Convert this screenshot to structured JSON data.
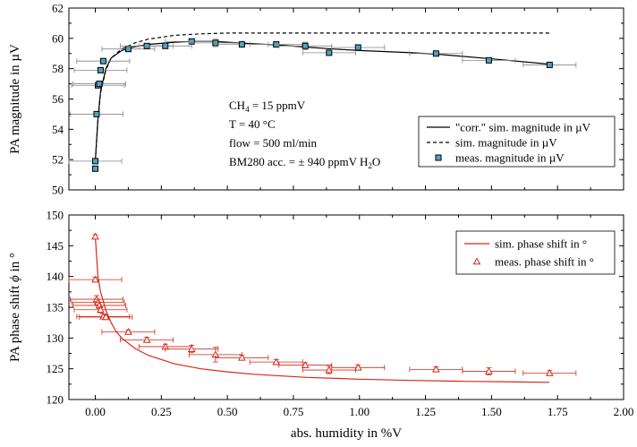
{
  "chart_data": [
    {
      "type": "line",
      "ylabel": "PA magnitude in µV",
      "xlim": [
        -0.1,
        2.0
      ],
      "ylim": [
        50,
        62
      ],
      "xticks": [
        "0.00",
        "0.25",
        "0.50",
        "0.75",
        "1.00",
        "1.25",
        "1.50",
        "1.75",
        "2.00"
      ],
      "yticks": [
        "50",
        "52",
        "54",
        "56",
        "58",
        "60",
        "62"
      ],
      "show_x_tick_labels": false,
      "legend_position": "right-middle",
      "annotation": [
        {
          "pre": "CH",
          "sub": "4",
          "post": " = 15 ppmV"
        },
        {
          "pre": "T = 40 °C",
          "sub": "",
          "post": ""
        },
        {
          "pre": "flow = 500 ml/min",
          "sub": "",
          "post": ""
        },
        {
          "pre": "BM280 acc. = ± 940 ppmV H",
          "sub": "2",
          "post": "O"
        }
      ],
      "series": [
        {
          "name": "\"corr.\" sim. magnitude in µV",
          "style": "solid-line",
          "color": "#000000",
          "x": [
            0.0,
            0.01,
            0.02,
            0.04,
            0.06,
            0.1,
            0.15,
            0.2,
            0.3,
            0.37,
            0.45,
            0.5,
            0.6,
            0.7,
            0.8,
            0.9,
            1.0,
            1.2,
            1.3,
            1.5,
            1.72
          ],
          "y": [
            51.9,
            54.7,
            56.5,
            58.0,
            58.7,
            59.2,
            59.45,
            59.6,
            59.75,
            59.8,
            59.8,
            59.75,
            59.65,
            59.55,
            59.42,
            59.3,
            59.2,
            59.05,
            58.95,
            58.65,
            58.3
          ]
        },
        {
          "name": "sim. magnitude in µV",
          "style": "dashed-line",
          "color": "#000000",
          "x": [
            0.0,
            0.01,
            0.02,
            0.04,
            0.06,
            0.1,
            0.15,
            0.2,
            0.3,
            0.4,
            0.5,
            0.6,
            0.8,
            1.0,
            1.3,
            1.5,
            1.72
          ],
          "y": [
            51.9,
            54.6,
            56.4,
            57.9,
            58.7,
            59.3,
            59.7,
            59.95,
            60.2,
            60.3,
            60.35,
            60.35,
            60.35,
            60.35,
            60.35,
            60.35,
            60.35
          ]
        },
        {
          "name": "meas. magnitude in µV",
          "style": "square-marker",
          "color": "#000000",
          "fill": "#4fa3c4",
          "x": [
            0.0,
            0.0,
            0.005,
            0.01,
            0.015,
            0.02,
            0.03,
            0.125,
            0.195,
            0.265,
            0.365,
            0.455,
            0.555,
            0.685,
            0.795,
            0.885,
            0.995,
            1.29,
            1.49,
            1.72
          ],
          "y": [
            51.4,
            51.9,
            55.0,
            56.9,
            57.0,
            57.9,
            58.5,
            59.3,
            59.5,
            59.5,
            59.8,
            59.7,
            59.6,
            59.6,
            59.5,
            59.05,
            59.4,
            59.0,
            58.55,
            58.25
          ],
          "xerr": [
            0.0,
            0.1,
            0.1,
            0.1,
            0.1,
            0.1,
            0.1,
            0.1,
            0.1,
            0.1,
            0.1,
            0.1,
            0.1,
            0.1,
            0.1,
            0.1,
            0.1,
            0.1,
            0.1,
            0.1
          ],
          "yerr": [
            0.15,
            0.1,
            0.05,
            0.05,
            0.05,
            0.1,
            0.15,
            0.15,
            0.1,
            0.1,
            0.15,
            0.25,
            0.1,
            0.15,
            0.25,
            0.15,
            0.1,
            0.1,
            0.1,
            0.1
          ]
        }
      ]
    },
    {
      "type": "line",
      "xlabel": "abs. humidity in %V",
      "ylabel_parts": {
        "pre": "PA phase shift ",
        "italic": "ϕ",
        "post": " in °"
      },
      "xlim": [
        -0.1,
        2.0
      ],
      "ylim": [
        120,
        150
      ],
      "xticks": [
        "0.00",
        "0.25",
        "0.50",
        "0.75",
        "1.00",
        "1.25",
        "1.50",
        "1.75",
        "2.00"
      ],
      "yticks": [
        "120",
        "125",
        "130",
        "135",
        "140",
        "145",
        "150"
      ],
      "show_x_tick_labels": true,
      "legend_position": "top-right",
      "series": [
        {
          "name": "sim. phase shift in °",
          "style": "solid-line",
          "color": "#d32a1a",
          "x": [
            0.0,
            0.01,
            0.02,
            0.04,
            0.06,
            0.08,
            0.1,
            0.15,
            0.2,
            0.3,
            0.4,
            0.5,
            0.6,
            0.8,
            1.0,
            1.2,
            1.4,
            1.6,
            1.72
          ],
          "y": [
            146.5,
            140.0,
            137.5,
            134.5,
            132.5,
            131.0,
            130.0,
            128.3,
            127.2,
            125.8,
            125.0,
            124.5,
            124.1,
            123.6,
            123.3,
            123.1,
            122.95,
            122.85,
            122.8
          ]
        },
        {
          "name": "meas. phase shift in °",
          "style": "triangle-marker",
          "color": "#d32a1a",
          "x": [
            0.0,
            0.0,
            0.005,
            0.01,
            0.015,
            0.02,
            0.03,
            0.04,
            0.125,
            0.195,
            0.265,
            0.365,
            0.455,
            0.555,
            0.685,
            0.795,
            0.885,
            0.995,
            1.29,
            1.49,
            1.72
          ],
          "y": [
            146.5,
            139.5,
            136.3,
            135.8,
            135.3,
            134.6,
            133.5,
            133.4,
            131.0,
            129.7,
            128.6,
            128.2,
            127.3,
            126.8,
            126.1,
            125.6,
            124.8,
            125.2,
            124.9,
            124.6,
            124.3
          ],
          "xerr": [
            0.0,
            0.1,
            0.1,
            0.1,
            0.1,
            0.1,
            0.1,
            0.1,
            0.1,
            0.1,
            0.1,
            0.1,
            0.1,
            0.1,
            0.1,
            0.1,
            0.1,
            0.1,
            0.1,
            0.1,
            0.1
          ],
          "yerr": [
            0.3,
            0.4,
            0.6,
            0.5,
            0.5,
            0.5,
            0.4,
            0.4,
            0.3,
            0.4,
            0.4,
            0.6,
            1.2,
            0.4,
            0.4,
            0.4,
            0.6,
            0.4,
            0.4,
            0.6,
            0.4
          ]
        }
      ]
    }
  ]
}
